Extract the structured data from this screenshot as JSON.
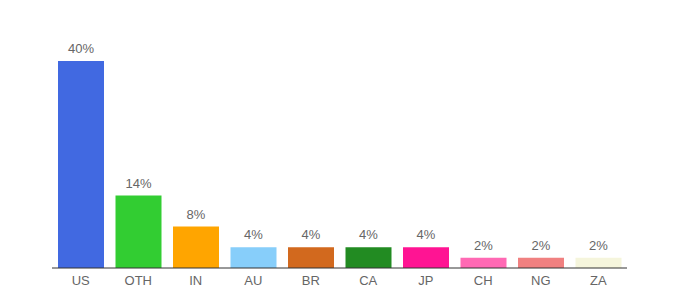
{
  "chart_data": {
    "type": "bar",
    "categories": [
      "US",
      "OTH",
      "IN",
      "AU",
      "BR",
      "CA",
      "JP",
      "CH",
      "NG",
      "ZA"
    ],
    "values": [
      40,
      14,
      8,
      4,
      4,
      4,
      4,
      2,
      2,
      2
    ],
    "value_labels": [
      "40%",
      "14%",
      "8%",
      "4%",
      "4%",
      "4%",
      "4%",
      "2%",
      "2%",
      "2%"
    ],
    "colors": [
      "#4169e1",
      "#32cd32",
      "#ffa500",
      "#87cefa",
      "#d2691e",
      "#228b22",
      "#ff1493",
      "#ff69b4",
      "#f08080",
      "#f5f5dc"
    ],
    "data_labels": true,
    "tick_labels": "x",
    "grid": false
  }
}
